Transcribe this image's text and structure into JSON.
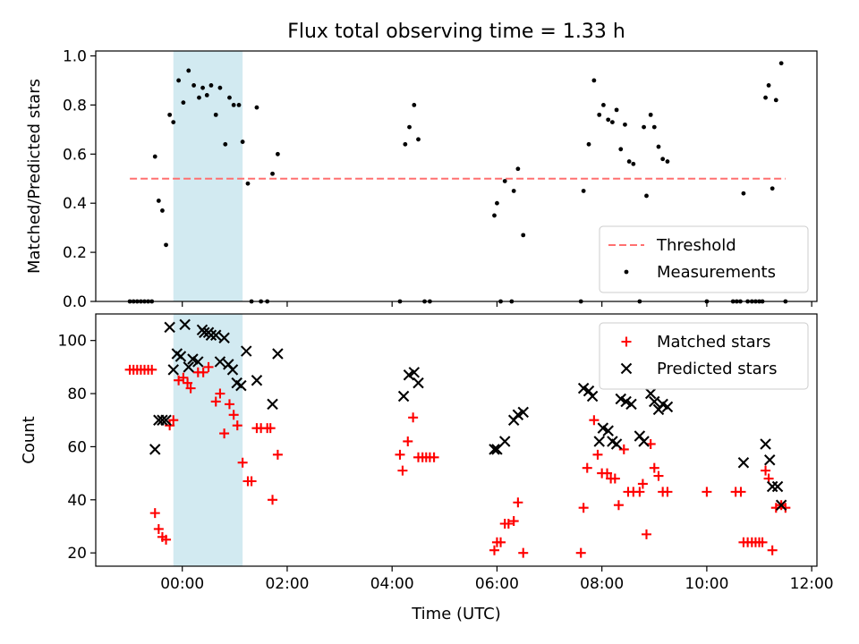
{
  "title": "Flux total observing time = 1.33 h",
  "chart_data": [
    {
      "type": "scatter",
      "panel": "top",
      "ylabel": "Matched/Predicted stars",
      "ylim": [
        0,
        1.02
      ],
      "yticks": [
        0.0,
        0.2,
        0.4,
        0.6,
        0.8,
        1.0
      ],
      "ytick_labels": [
        "0.0",
        "0.2",
        "0.4",
        "0.6",
        "0.8",
        "1.0"
      ],
      "x_unit": "hours UTC",
      "xlim": [
        -1.65,
        12.1
      ],
      "shaded_span": {
        "x": [
          -0.17,
          1.15
        ],
        "color": "#add8e6"
      },
      "legend_position": "lower-right",
      "threshold": {
        "name": "Threshold",
        "y": 0.5,
        "x": [
          -1.0,
          11.5
        ],
        "color": "#ff7070",
        "style": "dashed"
      },
      "series": [
        {
          "name": "Measurements",
          "color": "#000000",
          "marker": "dot",
          "points": [
            [
              -1.0,
              0.0
            ],
            [
              -0.93,
              0.0
            ],
            [
              -0.86,
              0.0
            ],
            [
              -0.79,
              0.0
            ],
            [
              -0.72,
              0.0
            ],
            [
              -0.65,
              0.0
            ],
            [
              -0.58,
              0.0
            ],
            [
              -0.52,
              0.59
            ],
            [
              -0.45,
              0.41
            ],
            [
              -0.38,
              0.37
            ],
            [
              -0.31,
              0.23
            ],
            [
              -0.24,
              0.76
            ],
            [
              -0.17,
              0.73
            ],
            [
              -0.07,
              0.9
            ],
            [
              0.02,
              0.81
            ],
            [
              0.12,
              0.94
            ],
            [
              0.22,
              0.88
            ],
            [
              0.32,
              0.83
            ],
            [
              0.39,
              0.87
            ],
            [
              0.47,
              0.84
            ],
            [
              0.55,
              0.88
            ],
            [
              0.64,
              0.76
            ],
            [
              0.72,
              0.87
            ],
            [
              0.82,
              0.64
            ],
            [
              0.9,
              0.83
            ],
            [
              0.98,
              0.8
            ],
            [
              1.08,
              0.8
            ],
            [
              1.15,
              0.65
            ],
            [
              1.25,
              0.48
            ],
            [
              1.32,
              0.0
            ],
            [
              1.42,
              0.79
            ],
            [
              1.5,
              0.0
            ],
            [
              1.62,
              0.0
            ],
            [
              1.72,
              0.52
            ],
            [
              1.82,
              0.6
            ],
            [
              4.15,
              0.0
            ],
            [
              4.25,
              0.64
            ],
            [
              4.33,
              0.71
            ],
            [
              4.42,
              0.8
            ],
            [
              4.5,
              0.66
            ],
            [
              4.62,
              0.0
            ],
            [
              4.72,
              0.0
            ],
            [
              5.95,
              0.35
            ],
            [
              6.0,
              0.4
            ],
            [
              6.07,
              0.0
            ],
            [
              6.15,
              0.49
            ],
            [
              6.28,
              0.0
            ],
            [
              6.32,
              0.45
            ],
            [
              6.4,
              0.54
            ],
            [
              6.5,
              0.27
            ],
            [
              7.6,
              0.0
            ],
            [
              7.65,
              0.45
            ],
            [
              7.75,
              0.64
            ],
            [
              7.85,
              0.9
            ],
            [
              7.95,
              0.76
            ],
            [
              8.03,
              0.8
            ],
            [
              8.12,
              0.74
            ],
            [
              8.2,
              0.73
            ],
            [
              8.28,
              0.78
            ],
            [
              8.36,
              0.62
            ],
            [
              8.44,
              0.72
            ],
            [
              8.52,
              0.57
            ],
            [
              8.6,
              0.56
            ],
            [
              8.72,
              0.0
            ],
            [
              8.8,
              0.71
            ],
            [
              8.85,
              0.43
            ],
            [
              8.93,
              0.76
            ],
            [
              9.0,
              0.71
            ],
            [
              9.08,
              0.63
            ],
            [
              9.16,
              0.58
            ],
            [
              9.25,
              0.57
            ],
            [
              10.0,
              0.0
            ],
            [
              10.5,
              0.0
            ],
            [
              10.57,
              0.0
            ],
            [
              10.64,
              0.0
            ],
            [
              10.7,
              0.44
            ],
            [
              10.78,
              0.0
            ],
            [
              10.86,
              0.0
            ],
            [
              10.93,
              0.0
            ],
            [
              11.0,
              0.0
            ],
            [
              11.06,
              0.0
            ],
            [
              11.12,
              0.83
            ],
            [
              11.18,
              0.88
            ],
            [
              11.25,
              0.46
            ],
            [
              11.32,
              0.82
            ],
            [
              11.42,
              0.97
            ],
            [
              11.5,
              0.0
            ]
          ]
        }
      ]
    },
    {
      "type": "scatter",
      "panel": "bottom",
      "xlabel": "Time (UTC)",
      "ylabel": "Count",
      "ylim": [
        15,
        110
      ],
      "yticks": [
        20,
        40,
        60,
        80,
        100
      ],
      "ytick_labels": [
        "20",
        "40",
        "60",
        "80",
        "100"
      ],
      "x_unit": "hours UTC",
      "xlim": [
        -1.65,
        12.1
      ],
      "xticks": [
        0,
        2,
        4,
        6,
        8,
        10,
        12
      ],
      "xtick_labels": [
        "00:00",
        "02:00",
        "04:00",
        "06:00",
        "08:00",
        "10:00",
        "12:00"
      ],
      "shaded_span": {
        "x": [
          -0.17,
          1.15
        ],
        "color": "#add8e6"
      },
      "legend_position": "upper-right",
      "series": [
        {
          "name": "Matched stars",
          "color": "#ff0000",
          "marker": "plus",
          "points": [
            [
              -1.0,
              89
            ],
            [
              -0.93,
              89
            ],
            [
              -0.86,
              89
            ],
            [
              -0.79,
              89
            ],
            [
              -0.72,
              89
            ],
            [
              -0.65,
              89
            ],
            [
              -0.58,
              89
            ],
            [
              -0.52,
              35
            ],
            [
              -0.45,
              29
            ],
            [
              -0.38,
              26
            ],
            [
              -0.31,
              25
            ],
            [
              -0.24,
              68
            ],
            [
              -0.17,
              70
            ],
            [
              -0.07,
              85
            ],
            [
              0.02,
              86
            ],
            [
              0.1,
              84
            ],
            [
              0.16,
              82
            ],
            [
              0.3,
              88
            ],
            [
              0.4,
              88
            ],
            [
              0.5,
              90
            ],
            [
              0.64,
              77
            ],
            [
              0.72,
              80
            ],
            [
              0.8,
              65
            ],
            [
              0.9,
              76
            ],
            [
              0.98,
              72
            ],
            [
              1.05,
              68
            ],
            [
              1.15,
              54
            ],
            [
              1.25,
              47
            ],
            [
              1.32,
              47
            ],
            [
              1.42,
              67
            ],
            [
              1.5,
              67
            ],
            [
              1.62,
              67
            ],
            [
              1.68,
              67
            ],
            [
              1.72,
              40
            ],
            [
              1.82,
              57
            ],
            [
              4.15,
              57
            ],
            [
              4.2,
              51
            ],
            [
              4.3,
              62
            ],
            [
              4.4,
              71
            ],
            [
              4.5,
              56
            ],
            [
              4.58,
              56
            ],
            [
              4.65,
              56
            ],
            [
              4.72,
              56
            ],
            [
              4.8,
              56
            ],
            [
              5.95,
              21
            ],
            [
              6.0,
              24
            ],
            [
              6.07,
              24
            ],
            [
              6.15,
              31
            ],
            [
              6.22,
              31
            ],
            [
              6.32,
              32
            ],
            [
              6.4,
              39
            ],
            [
              6.5,
              20
            ],
            [
              7.6,
              20
            ],
            [
              7.65,
              37
            ],
            [
              7.72,
              52
            ],
            [
              7.85,
              70
            ],
            [
              7.92,
              57
            ],
            [
              8.0,
              50
            ],
            [
              8.1,
              50
            ],
            [
              8.17,
              48
            ],
            [
              8.25,
              48
            ],
            [
              8.32,
              38
            ],
            [
              8.42,
              59
            ],
            [
              8.5,
              43
            ],
            [
              8.6,
              43
            ],
            [
              8.72,
              43
            ],
            [
              8.78,
              46
            ],
            [
              8.85,
              27
            ],
            [
              8.93,
              61
            ],
            [
              9.0,
              52
            ],
            [
              9.08,
              49
            ],
            [
              9.16,
              43
            ],
            [
              9.25,
              43
            ],
            [
              10.0,
              43
            ],
            [
              10.55,
              43
            ],
            [
              10.65,
              43
            ],
            [
              10.7,
              24
            ],
            [
              10.78,
              24
            ],
            [
              10.86,
              24
            ],
            [
              10.93,
              24
            ],
            [
              11.0,
              24
            ],
            [
              11.06,
              24
            ],
            [
              11.12,
              51
            ],
            [
              11.18,
              48
            ],
            [
              11.25,
              21
            ],
            [
              11.32,
              37
            ],
            [
              11.42,
              38
            ],
            [
              11.5,
              37
            ]
          ]
        },
        {
          "name": "Predicted stars",
          "color": "#000000",
          "marker": "x",
          "points": [
            [
              -0.52,
              59
            ],
            [
              -0.45,
              70
            ],
            [
              -0.38,
              70
            ],
            [
              -0.31,
              70
            ],
            [
              -0.24,
              105
            ],
            [
              -0.17,
              89
            ],
            [
              -0.1,
              95
            ],
            [
              -0.03,
              94
            ],
            [
              0.05,
              106
            ],
            [
              0.12,
              90
            ],
            [
              0.2,
              93
            ],
            [
              0.3,
              92
            ],
            [
              0.38,
              104
            ],
            [
              0.42,
              103
            ],
            [
              0.5,
              103
            ],
            [
              0.55,
              102
            ],
            [
              0.64,
              102
            ],
            [
              0.72,
              92
            ],
            [
              0.8,
              101
            ],
            [
              0.88,
              91
            ],
            [
              0.96,
              89
            ],
            [
              1.04,
              84
            ],
            [
              1.12,
              83
            ],
            [
              1.22,
              96
            ],
            [
              1.42,
              85
            ],
            [
              1.72,
              76
            ],
            [
              1.82,
              95
            ],
            [
              4.22,
              79
            ],
            [
              4.32,
              87
            ],
            [
              4.42,
              88
            ],
            [
              4.5,
              84
            ],
            [
              5.95,
              59
            ],
            [
              6.0,
              59
            ],
            [
              6.15,
              62
            ],
            [
              6.32,
              70
            ],
            [
              6.4,
              72
            ],
            [
              6.5,
              73
            ],
            [
              7.65,
              82
            ],
            [
              7.75,
              81
            ],
            [
              7.82,
              79
            ],
            [
              7.95,
              62
            ],
            [
              8.02,
              67
            ],
            [
              8.12,
              66
            ],
            [
              8.2,
              62
            ],
            [
              8.28,
              61
            ],
            [
              8.36,
              78
            ],
            [
              8.46,
              77
            ],
            [
              8.56,
              76
            ],
            [
              8.72,
              64
            ],
            [
              8.8,
              62
            ],
            [
              8.93,
              80
            ],
            [
              9.0,
              77
            ],
            [
              9.08,
              74
            ],
            [
              9.16,
              76
            ],
            [
              9.25,
              75
            ],
            [
              10.7,
              54
            ],
            [
              11.12,
              61
            ],
            [
              11.2,
              55
            ],
            [
              11.25,
              45
            ],
            [
              11.35,
              45
            ],
            [
              11.42,
              38
            ]
          ]
        }
      ]
    }
  ]
}
